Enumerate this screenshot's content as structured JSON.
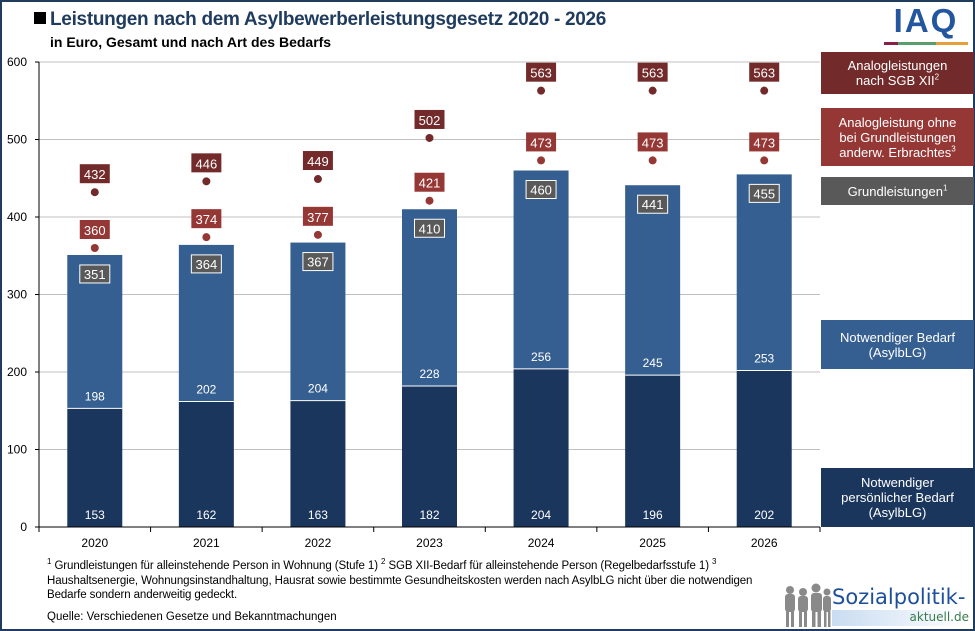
{
  "header": {
    "title": "Leistungen nach dem Asylbewerberleistungsgesetz 2020 - 2026",
    "subtitle": "in Euro, Gesamt und nach Art des Bedarfs"
  },
  "logos": {
    "iaq": "IAQ",
    "sozialpolitik_main": "Sozialpolitik-",
    "sozialpolitik_sub": "aktuell.de"
  },
  "colors": {
    "personal_need": "#1b365d",
    "necessary_need": "#365f91",
    "grundleistungen_label": "#595959",
    "analog_ohne": "#953735",
    "analog_sgb": "#722a2a",
    "grid": "#c0c0c0"
  },
  "legend": [
    {
      "id": "analog_sgb",
      "lines": [
        "Analogleistungen",
        "nach SGB XII"
      ],
      "sup": "2"
    },
    {
      "id": "analog_ohne",
      "lines": [
        "Analogleistung ohne",
        "bei Grundleistungen",
        "anderw. Erbrachtes"
      ],
      "sup": "3"
    },
    {
      "id": "grundleistungen",
      "lines": [
        "Grundleistungen"
      ],
      "sup": "1"
    },
    {
      "id": "necessary_need",
      "lines": [
        "Notwendiger Bedarf",
        "(AsylbLG)"
      ],
      "sup": ""
    },
    {
      "id": "personal_need",
      "lines": [
        "Notwendiger",
        "persönlicher Bedarf",
        "(AsylbLG)"
      ],
      "sup": ""
    }
  ],
  "footnotes": {
    "text1_sup": "1",
    "text1": " Grundleistungen  für  alleinstehende  Person  in Wohnung (Stufe 1) ",
    "text2_sup": "2",
    "text2": " SGB XII-Bedarf  für alleinstehende  Person (Regelbedarfsstufe  1) ",
    "text3_sup": "3",
    "text3": " Haushaltsenergie,  Wohnungsinstandhaltung,  Hausrat  sowie bestimmte Gesundheitskosten  werden nach AsylbLG nicht über die notwendigen  Bedarfe  sondern  anderweitig  gedeckt.",
    "source": "Quelle:  Verschiedenen  Gesetze und Bekanntmachungen"
  },
  "chart_data": {
    "type": "bar",
    "stacked": true,
    "title": "Leistungen nach dem Asylbewerberleistungsgesetz 2020 - 2026",
    "subtitle": "in Euro, Gesamt und nach Art des Bedarfs",
    "xlabel": "",
    "ylabel": "",
    "ylim": [
      0,
      600
    ],
    "yticks": [
      0,
      100,
      200,
      300,
      400,
      500,
      600
    ],
    "grid": true,
    "legend_position": "right",
    "categories": [
      "2020",
      "2021",
      "2022",
      "2023",
      "2024",
      "2025",
      "2026"
    ],
    "series": [
      {
        "name": "Notwendiger persönlicher Bedarf (AsylbLG)",
        "kind": "bar",
        "values": [
          153,
          162,
          163,
          182,
          204,
          196,
          202
        ]
      },
      {
        "name": "Notwendiger Bedarf (AsylbLG)",
        "kind": "bar",
        "values": [
          198,
          202,
          204,
          228,
          256,
          245,
          253
        ]
      },
      {
        "name": "Grundleistungen",
        "kind": "total-label",
        "values": [
          351,
          364,
          367,
          410,
          460,
          441,
          455
        ]
      },
      {
        "name": "Analogleistung ohne bei Grundleistungen anderw. Erbrachtes",
        "kind": "point",
        "values": [
          360,
          374,
          377,
          421,
          473,
          473,
          473
        ]
      },
      {
        "name": "Analogleistungen nach SGB XII",
        "kind": "point",
        "values": [
          432,
          446,
          449,
          502,
          563,
          563,
          563
        ]
      }
    ]
  }
}
